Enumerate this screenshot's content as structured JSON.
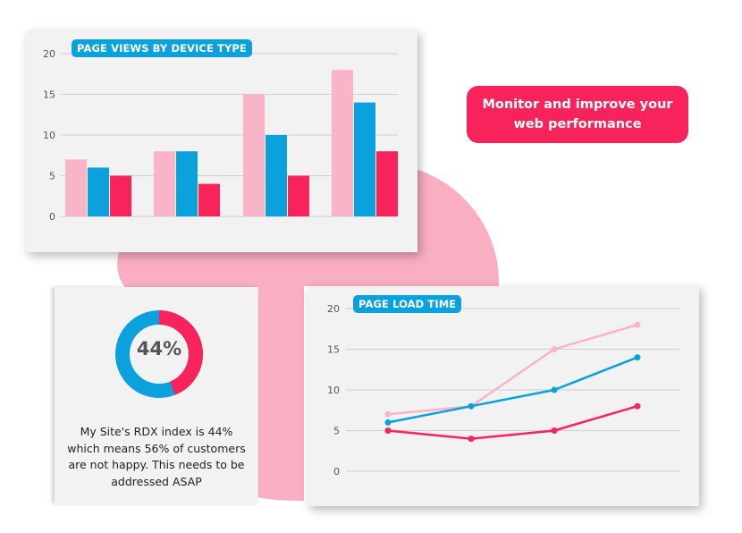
{
  "colors": {
    "pink": "#f9b4c7",
    "blue": "#0aa1dd",
    "red": "#f7235a",
    "blob": "#f9aec2",
    "grid": "#cfcfcf"
  },
  "callout": {
    "text": "Monitor and improve your web performance"
  },
  "donut": {
    "value_pct": 44,
    "label": "44%",
    "description": "My Site's RDX index is 44% which means 56% of customers are not happy. This needs to be addressed ASAP"
  },
  "chart_data": [
    {
      "type": "bar",
      "title": "PAGE VIEWS BY DEVICE TYPE",
      "categories": [
        "",
        "",
        "",
        ""
      ],
      "ylim": [
        0,
        20
      ],
      "yticks": [
        "0",
        "5",
        "10",
        "15",
        "20"
      ],
      "grid": true,
      "series": [
        {
          "color": "#f9b4c7",
          "values": [
            7,
            8,
            15,
            18
          ]
        },
        {
          "color": "#0aa1dd",
          "values": [
            6,
            8,
            10,
            14
          ]
        },
        {
          "color": "#f7235a",
          "values": [
            5,
            4,
            5,
            8
          ]
        }
      ]
    },
    {
      "type": "line",
      "title": "PAGE LOAD TIME",
      "x": [
        1,
        2,
        3,
        4
      ],
      "ylim": [
        0,
        20
      ],
      "yticks": [
        "0",
        "5",
        "10",
        "15",
        "20"
      ],
      "grid": true,
      "series": [
        {
          "color": "#f9b4c7",
          "values": [
            7,
            8,
            15,
            18
          ]
        },
        {
          "color": "#0aa1dd",
          "values": [
            6,
            8,
            10,
            14
          ]
        },
        {
          "color": "#f7235a",
          "values": [
            5,
            4,
            5,
            8
          ]
        }
      ]
    }
  ]
}
